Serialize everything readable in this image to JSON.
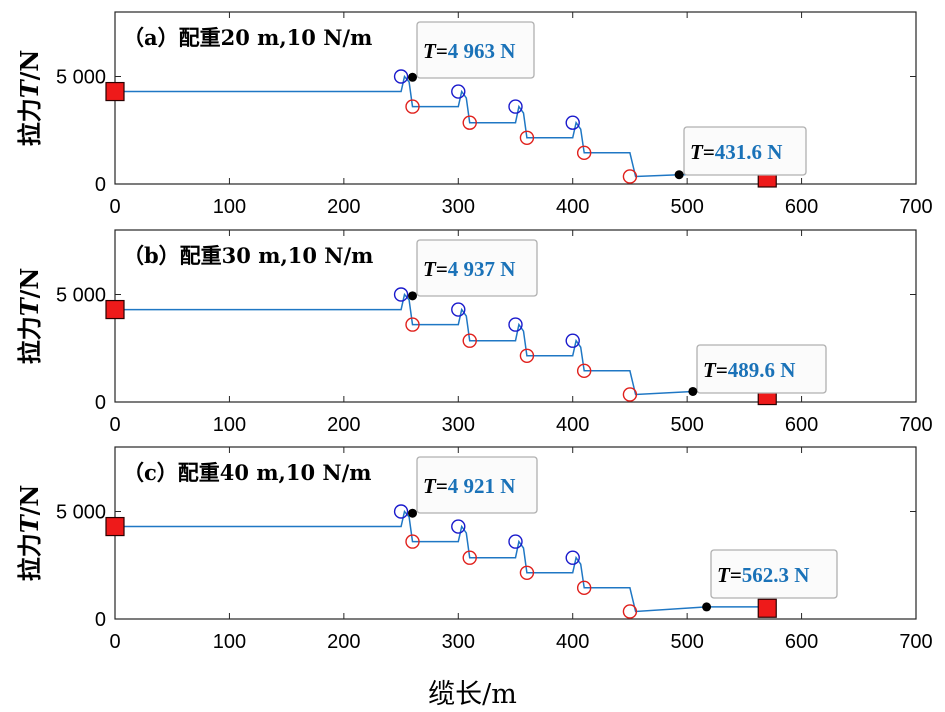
{
  "xlabel": "缆长/m",
  "ylabel": "拉力T/N",
  "ylabel_parts": {
    "main": "拉力",
    "var": "T",
    "unit": "/N"
  },
  "colors": {
    "cable": "#1f77c4",
    "blue_marker": "#1a1acc",
    "red_marker": "#e0201c",
    "anchor": "#ee1a1a",
    "point": "#000000",
    "value_text": "#1a72b8"
  },
  "chart_data": [
    {
      "type": "line",
      "title": "（a）配重20 m,10 N/m",
      "xlim": [
        0,
        700
      ],
      "ylim": [
        0,
        8000
      ],
      "x_ticks": [
        "0",
        "100",
        "200",
        "300",
        "400",
        "500",
        "600",
        "700"
      ],
      "y_ticks": [
        {
          "v": 0,
          "label": "0"
        },
        {
          "v": 5000,
          "label": "5 000"
        }
      ],
      "series": [
        {
          "x": [
            0,
            250,
            253,
            257,
            260,
            300,
            303,
            307,
            310,
            350,
            353,
            357,
            360,
            400,
            403,
            407,
            410,
            450,
            455,
            493,
            570
          ],
          "y": [
            4300,
            4300,
            5000,
            4750,
            3600,
            3600,
            4300,
            4000,
            2850,
            2850,
            3600,
            3300,
            2150,
            2150,
            2850,
            2550,
            1450,
            1450,
            350,
            432,
            432
          ]
        }
      ],
      "blue_markers": [
        [
          250,
          5000
        ],
        [
          300,
          4300
        ],
        [
          350,
          3600
        ],
        [
          400,
          2850
        ]
      ],
      "red_markers": [
        [
          260,
          3600
        ],
        [
          310,
          2850
        ],
        [
          360,
          2150
        ],
        [
          410,
          1450
        ],
        [
          450,
          350
        ]
      ],
      "anchors": [
        [
          0,
          4300
        ],
        [
          570,
          280
        ]
      ],
      "annotations": [
        {
          "x": 260,
          "y": 4963,
          "var": "T",
          "eq": "=",
          "value": "4 963 N"
        },
        {
          "x": 493,
          "y": 431.6,
          "var": "T",
          "eq": "=",
          "value": "431.6 N"
        }
      ]
    },
    {
      "type": "line",
      "title": "（b）配重30 m,10 N/m",
      "xlim": [
        0,
        700
      ],
      "ylim": [
        0,
        8000
      ],
      "x_ticks": [
        "0",
        "100",
        "200",
        "300",
        "400",
        "500",
        "600",
        "700"
      ],
      "y_ticks": [
        {
          "v": 0,
          "label": "0"
        },
        {
          "v": 5000,
          "label": "5 000"
        }
      ],
      "series": [
        {
          "x": [
            0,
            250,
            253,
            257,
            260,
            300,
            303,
            307,
            310,
            350,
            353,
            357,
            360,
            400,
            403,
            407,
            410,
            450,
            455,
            505,
            570
          ],
          "y": [
            4300,
            4300,
            5000,
            4750,
            3600,
            3600,
            4300,
            4000,
            2850,
            2850,
            3600,
            3300,
            2150,
            2150,
            2850,
            2550,
            1450,
            1450,
            350,
            490,
            490
          ]
        }
      ],
      "blue_markers": [
        [
          250,
          5000
        ],
        [
          300,
          4300
        ],
        [
          350,
          3600
        ],
        [
          400,
          2850
        ]
      ],
      "red_markers": [
        [
          260,
          3600
        ],
        [
          310,
          2850
        ],
        [
          360,
          2150
        ],
        [
          410,
          1450
        ],
        [
          450,
          350
        ]
      ],
      "anchors": [
        [
          0,
          4300
        ],
        [
          570,
          300
        ]
      ],
      "annotations": [
        {
          "x": 260,
          "y": 4937,
          "var": "T",
          "eq": "=",
          "value": "4 937 N"
        },
        {
          "x": 505,
          "y": 489.6,
          "var": "T",
          "eq": "=",
          "value": "489.6 N"
        }
      ]
    },
    {
      "type": "line",
      "title": "（c）配重40 m,10 N/m",
      "xlim": [
        0,
        700
      ],
      "ylim": [
        0,
        8000
      ],
      "x_ticks": [
        "0",
        "100",
        "200",
        "300",
        "400",
        "500",
        "600",
        "700"
      ],
      "y_ticks": [
        {
          "v": 0,
          "label": "0"
        },
        {
          "v": 5000,
          "label": "5 000"
        }
      ],
      "series": [
        {
          "x": [
            0,
            250,
            253,
            257,
            260,
            300,
            303,
            307,
            310,
            350,
            353,
            357,
            360,
            400,
            403,
            407,
            410,
            450,
            455,
            517,
            570
          ],
          "y": [
            4300,
            4300,
            5000,
            4750,
            3600,
            3600,
            4300,
            4000,
            2850,
            2850,
            3600,
            3300,
            2150,
            2150,
            2850,
            2550,
            1450,
            1450,
            350,
            562,
            562
          ]
        }
      ],
      "blue_markers": [
        [
          250,
          5000
        ],
        [
          300,
          4300
        ],
        [
          350,
          3600
        ],
        [
          400,
          2850
        ]
      ],
      "red_markers": [
        [
          260,
          3600
        ],
        [
          310,
          2850
        ],
        [
          360,
          2150
        ],
        [
          410,
          1450
        ],
        [
          450,
          350
        ]
      ],
      "anchors": [
        [
          0,
          4300
        ],
        [
          570,
          500
        ]
      ],
      "annotations": [
        {
          "x": 260,
          "y": 4921,
          "var": "T",
          "eq": "=",
          "value": "4 921 N"
        },
        {
          "x": 517,
          "y": 562.3,
          "var": "T",
          "eq": "=",
          "value": "562.3 N"
        }
      ]
    }
  ]
}
